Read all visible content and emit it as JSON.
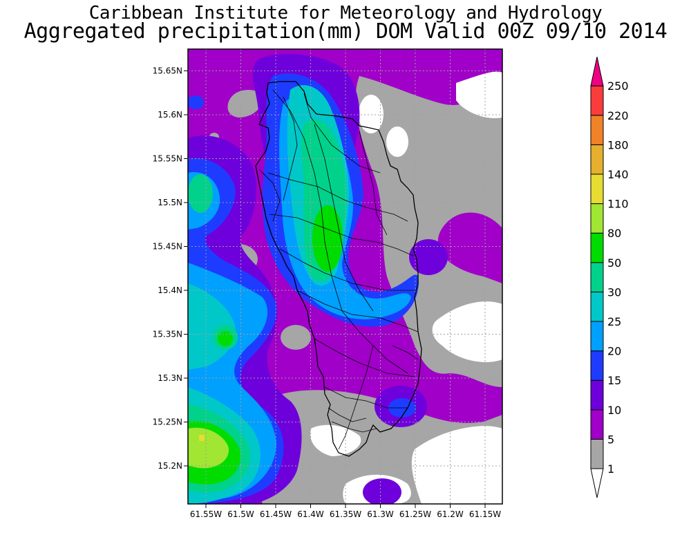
{
  "title": "Caribbean Institute for Meteorology and Hydrology",
  "subtitle": "Aggregated precipitation(mm) DOM Valid 00Z 09/10 2014",
  "map": {
    "lat_ticks": [
      "15.65N",
      "15.6N",
      "15.55N",
      "15.5N",
      "15.45N",
      "15.4N",
      "15.35N",
      "15.3N",
      "15.25N",
      "15.2N"
    ],
    "lon_ticks": [
      "61.55W",
      "61.5W",
      "61.45W",
      "61.4W",
      "61.35W",
      "61.3W",
      "61.25W",
      "61.2W",
      "61.15W"
    ]
  },
  "colorbar": {
    "levels": [
      "1",
      "5",
      "10",
      "15",
      "20",
      "25",
      "30",
      "50",
      "80",
      "110",
      "140",
      "180",
      "220",
      "250"
    ],
    "colors": [
      "#a6a6a6",
      "#a000c8",
      "#6e00dc",
      "#1e3cff",
      "#00a0ff",
      "#00c8c8",
      "#00d28c",
      "#00dc00",
      "#a0e632",
      "#e6dc32",
      "#e6af2d",
      "#f08228",
      "#fa3c3c",
      "#f00082"
    ],
    "below_color": "#ffffff"
  },
  "palette": {
    "none": "#ffffff",
    "c1": "#a6a6a6",
    "c5": "#a000c8",
    "c10": "#6e00dc",
    "c15": "#1e3cff",
    "c20": "#00a0ff",
    "c25": "#00c8c8",
    "c30": "#00d28c",
    "c50": "#00dc00",
    "c80": "#a0e632"
  }
}
